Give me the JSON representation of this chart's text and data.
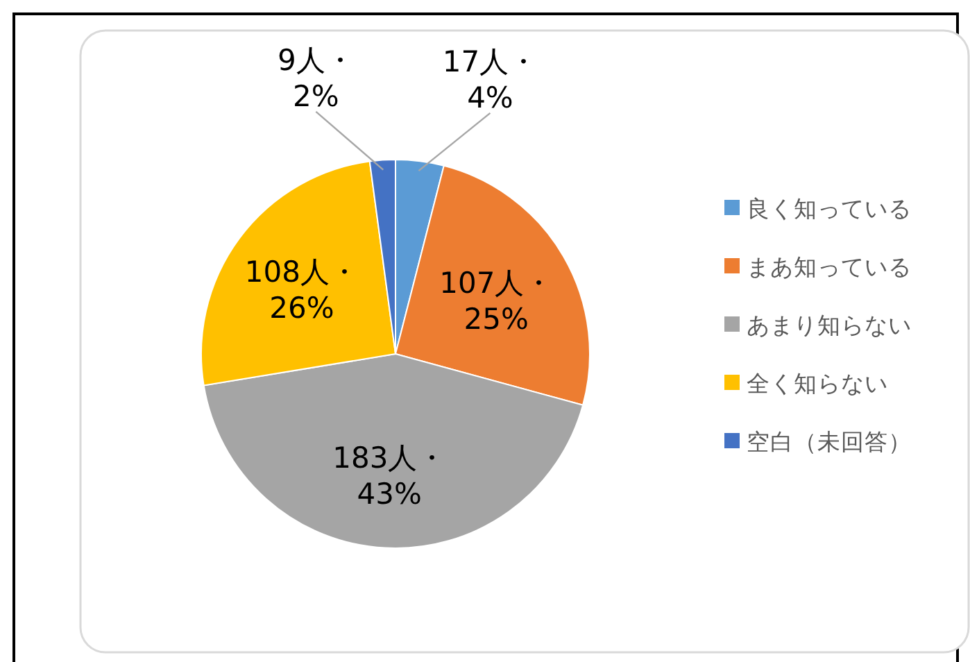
{
  "chart_data": {
    "type": "pie",
    "categories": [
      "良く知っている",
      "まあ知っている",
      "あまり知らない",
      "全く知らない",
      "空白（未回答）"
    ],
    "values": [
      17,
      107,
      183,
      108,
      9
    ],
    "colors": [
      "#5b9bd5",
      "#ed7d31",
      "#a5a5a5",
      "#ffc000",
      "#4472c4"
    ],
    "value_labels": [
      "17人・4%",
      "107人・25%",
      "183人・43%",
      "108人・26%",
      "9人・2%"
    ],
    "legend": "right"
  }
}
